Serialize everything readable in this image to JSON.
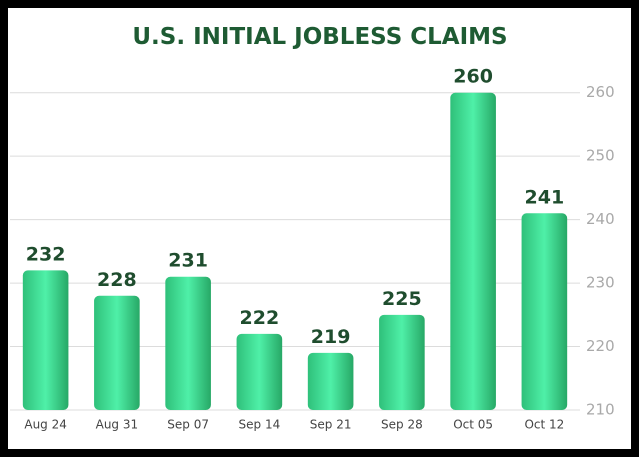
{
  "chart_data": {
    "type": "bar",
    "title": "U.S. INITIAL JOBLESS CLAIMS",
    "categories": [
      "Aug 24",
      "Aug 31",
      "Sep 07",
      "Sep 14",
      "Sep 21",
      "Sep 28",
      "Oct 05",
      "Oct 12"
    ],
    "values": [
      232,
      228,
      231,
      222,
      219,
      225,
      260,
      241
    ],
    "color": "#3fdc94",
    "ylim": [
      210,
      265
    ],
    "yticks": [
      210,
      220,
      230,
      240,
      250,
      260
    ],
    "grid": true
  }
}
